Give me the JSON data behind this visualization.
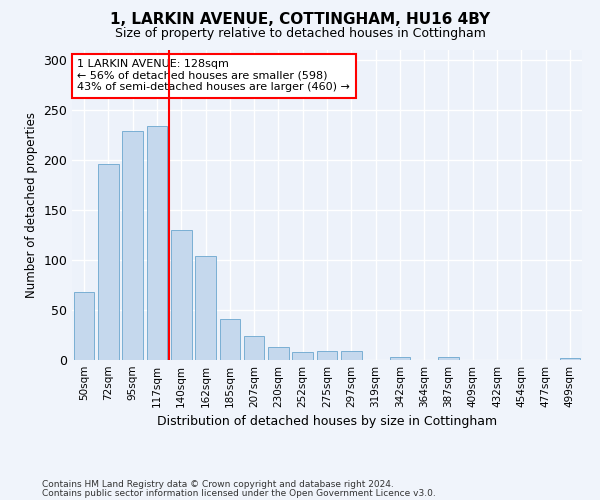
{
  "title": "1, LARKIN AVENUE, COTTINGHAM, HU16 4BY",
  "subtitle": "Size of property relative to detached houses in Cottingham",
  "xlabel": "Distribution of detached houses by size in Cottingham",
  "ylabel": "Number of detached properties",
  "bar_color": "#c5d8ed",
  "bar_edge_color": "#7aafd4",
  "background_color": "#edf2fa",
  "grid_color": "#ffffff",
  "categories": [
    "50sqm",
    "72sqm",
    "95sqm",
    "117sqm",
    "140sqm",
    "162sqm",
    "185sqm",
    "207sqm",
    "230sqm",
    "252sqm",
    "275sqm",
    "297sqm",
    "319sqm",
    "342sqm",
    "364sqm",
    "387sqm",
    "409sqm",
    "432sqm",
    "454sqm",
    "477sqm",
    "499sqm"
  ],
  "values": [
    68,
    196,
    229,
    234,
    130,
    104,
    41,
    24,
    13,
    8,
    9,
    9,
    0,
    3,
    0,
    3,
    0,
    0,
    0,
    0,
    2
  ],
  "ylim": [
    0,
    310
  ],
  "yticks": [
    0,
    50,
    100,
    150,
    200,
    250,
    300
  ],
  "property_label": "1 LARKIN AVENUE: 128sqm",
  "annotation_line1": "← 56% of detached houses are smaller (598)",
  "annotation_line2": "43% of semi-detached houses are larger (460) →",
  "vline_x_index": 3.5,
  "footnote1": "Contains HM Land Registry data © Crown copyright and database right 2024.",
  "footnote2": "Contains public sector information licensed under the Open Government Licence v3.0."
}
